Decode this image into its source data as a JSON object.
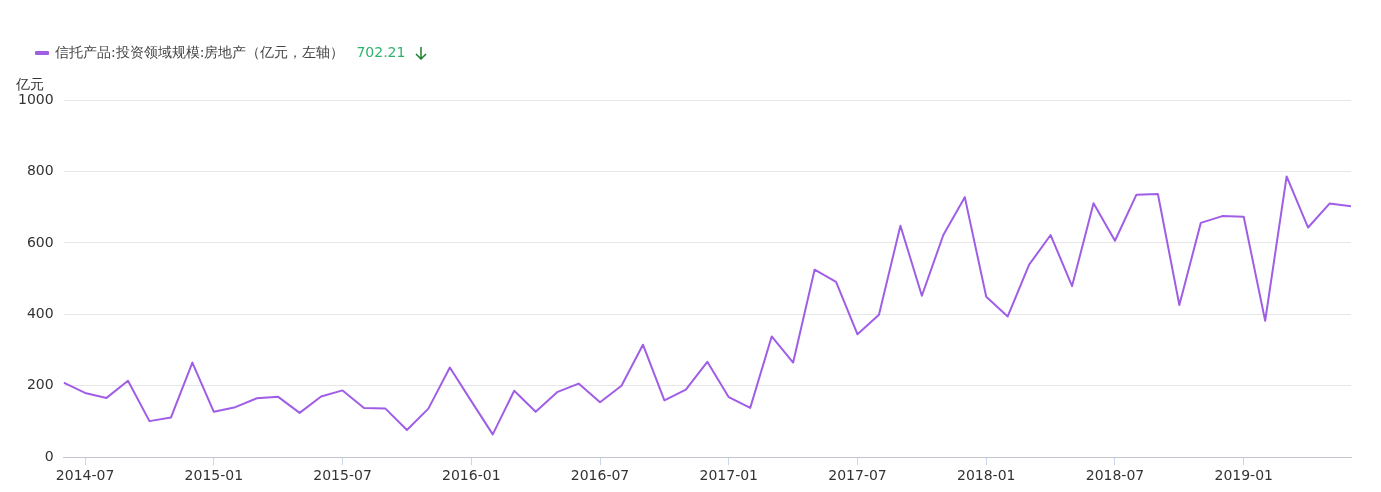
{
  "chart_data": {
    "type": "line",
    "ylabel": "亿元",
    "x": [
      "2014-06",
      "2014-07",
      "2014-08",
      "2014-09",
      "2014-10",
      "2014-11",
      "2014-12",
      "2015-01",
      "2015-02",
      "2015-03",
      "2015-04",
      "2015-05",
      "2015-06",
      "2015-07",
      "2015-08",
      "2015-09",
      "2015-10",
      "2015-11",
      "2015-12",
      "2016-01",
      "2016-02",
      "2016-03",
      "2016-04",
      "2016-05",
      "2016-06",
      "2016-07",
      "2016-08",
      "2016-09",
      "2016-10",
      "2016-11",
      "2016-12",
      "2017-01",
      "2017-02",
      "2017-03",
      "2017-04",
      "2017-05",
      "2017-06",
      "2017-07",
      "2017-08",
      "2017-09",
      "2017-10",
      "2017-11",
      "2017-12",
      "2018-01",
      "2018-02",
      "2018-03",
      "2018-04",
      "2018-05",
      "2018-06",
      "2018-07",
      "2018-08",
      "2018-09",
      "2018-10",
      "2018-11",
      "2018-12",
      "2019-01",
      "2019-02",
      "2019-03",
      "2019-04",
      "2019-05",
      "2019-06"
    ],
    "series": [
      {
        "name": "信托产品:投资领域规模:房地产（亿元，左轴）",
        "color": "#a05ee6",
        "values": [
          209,
          180,
          166,
          214,
          101,
          111,
          265,
          127,
          140,
          165,
          169,
          124,
          170,
          187,
          138,
          136,
          76,
          136,
          251,
          157,
          64,
          186,
          127,
          182,
          206,
          154,
          200,
          315,
          159,
          189,
          267,
          168,
          138,
          338,
          265,
          525,
          491,
          344,
          399,
          648,
          452,
          622,
          728,
          449,
          394,
          539,
          622,
          479,
          711,
          606,
          735,
          737,
          426,
          656,
          675,
          673,
          382,
          786,
          643,
          710,
          702.21
        ]
      }
    ],
    "annotations": [
      "702.21"
    ],
    "xlim": [
      "2014-06",
      "2019-06"
    ],
    "xticks": [
      "2014-07",
      "2015-01",
      "2015-07",
      "2016-01",
      "2016-07",
      "2017-01",
      "2017-07",
      "2018-01",
      "2018-07",
      "2019-01"
    ],
    "ylim": [
      0,
      1000
    ],
    "yticks": [
      0,
      200,
      400,
      600,
      800,
      1000
    ],
    "grid": "y",
    "legend": "top left",
    "marker": "none",
    "line_style": "solid"
  }
}
